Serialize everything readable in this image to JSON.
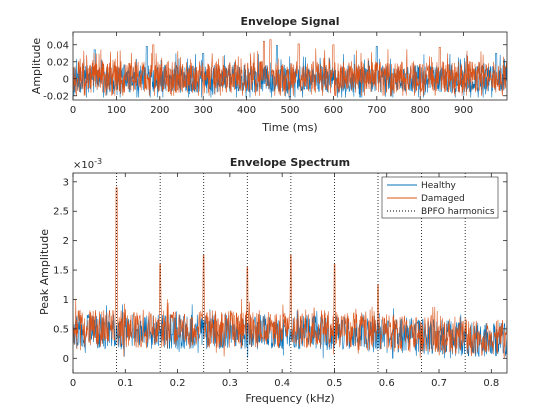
{
  "chart_data": [
    {
      "type": "line",
      "title": "Envelope Signal",
      "xlabel": "Time (ms)",
      "ylabel": "Amplitude",
      "xlim": [
        0,
        1000
      ],
      "ylim": [
        -0.025,
        0.055
      ],
      "xticks": [
        0,
        100,
        200,
        300,
        400,
        500,
        600,
        700,
        800,
        900
      ],
      "yticks": [
        -0.02,
        0,
        0.02,
        0.04
      ],
      "ytick_labels": [
        "-0.02",
        "0",
        "0.02",
        "0.04"
      ],
      "grid": false,
      "legend": "none",
      "series": [
        {
          "color": "#0072bd",
          "baseline": 0.0,
          "noise_range": [
            -0.022,
            0.038
          ],
          "peaks": [
            {
              "x": 50,
              "y": 0.034
            },
            {
              "x": 170,
              "y": 0.038
            },
            {
              "x": 300,
              "y": 0.03
            },
            {
              "x": 470,
              "y": 0.039
            },
            {
              "x": 700,
              "y": 0.038
            },
            {
              "x": 975,
              "y": 0.03
            }
          ]
        },
        {
          "color": "#d95319",
          "baseline": 0.002,
          "noise_range": [
            -0.02,
            0.048
          ],
          "peaks": [
            {
              "x": 185,
              "y": 0.04
            },
            {
              "x": 440,
              "y": 0.044
            },
            {
              "x": 455,
              "y": 0.046
            },
            {
              "x": 520,
              "y": 0.041
            },
            {
              "x": 600,
              "y": 0.04
            },
            {
              "x": 845,
              "y": 0.037
            }
          ]
        }
      ]
    },
    {
      "type": "line",
      "title": "Envelope Spectrum",
      "xlabel": "Frequency (kHz)",
      "ylabel": "Peak Amplitude",
      "y_exponent": "×10",
      "y_exponent_power": "-3",
      "xlim": [
        0,
        0.83
      ],
      "ylim": [
        -0.25,
        3.15
      ],
      "xticks": [
        0,
        0.1,
        0.2,
        0.3,
        0.4,
        0.5,
        0.6,
        0.7,
        0.8
      ],
      "xtick_labels": [
        "0",
        "0.1",
        "0.2",
        "0.3",
        "0.4",
        "0.5",
        "0.6",
        "0.7",
        "0.8"
      ],
      "yticks": [
        0,
        0.5,
        1,
        1.5,
        2,
        2.5,
        3
      ],
      "ytick_labels": [
        "0",
        "0.5",
        "1",
        "1.5",
        "2",
        "2.5",
        "3"
      ],
      "grid": false,
      "legend": "top-right",
      "legend_entries": [
        "Healthy",
        "Damaged",
        "BPFO harmonics"
      ],
      "bpfo_harmonics": [
        0.0833,
        0.1667,
        0.25,
        0.3333,
        0.4167,
        0.5,
        0.5833,
        0.6667,
        0.75
      ],
      "series": [
        {
          "name": "Healthy",
          "color": "#0072bd",
          "baseline": 0.45,
          "noise_range": [
            0.0,
            1.0
          ],
          "peaks": []
        },
        {
          "name": "Damaged",
          "color": "#d95319",
          "baseline": 0.5,
          "noise_range": [
            0.0,
            1.1
          ],
          "peaks": [
            {
              "x": 0.0833,
              "y": 2.9
            },
            {
              "x": 0.1667,
              "y": 1.6
            },
            {
              "x": 0.25,
              "y": 1.75
            },
            {
              "x": 0.3333,
              "y": 1.55
            },
            {
              "x": 0.4167,
              "y": 1.75
            },
            {
              "x": 0.5,
              "y": 1.6
            },
            {
              "x": 0.5833,
              "y": 1.25
            }
          ]
        },
        {
          "name": "BPFO harmonics",
          "color": "#000000",
          "style": "dotted"
        }
      ]
    }
  ]
}
